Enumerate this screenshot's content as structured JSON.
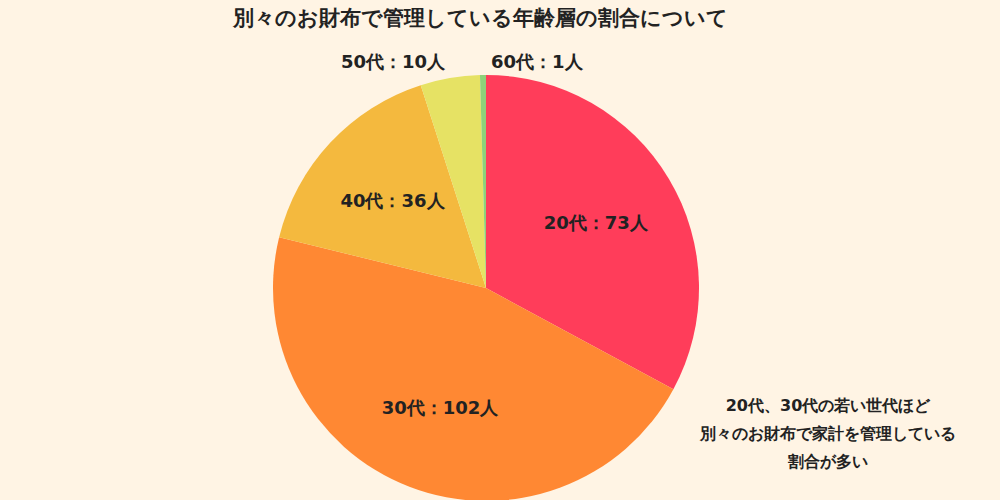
{
  "chart_data": {
    "type": "pie",
    "title": "別々のお財布で管理している年齢層の割合について",
    "categories": [
      "20代",
      "30代",
      "40代",
      "50代",
      "60代"
    ],
    "values": [
      73,
      102,
      36,
      10,
      1
    ],
    "value_labels": [
      "20代：73人",
      "30代：102人",
      "40代：36人",
      "50代：10人",
      "60代：1人"
    ],
    "colors": [
      "#ff3d5a",
      "#ff8833",
      "#f4b93e",
      "#e6e264",
      "#8ed17a"
    ],
    "data_labels": true,
    "annotation": [
      "20代、30代の若い世代ほど",
      "別々のお財布で家計を管理している",
      "割合が多い"
    ]
  }
}
